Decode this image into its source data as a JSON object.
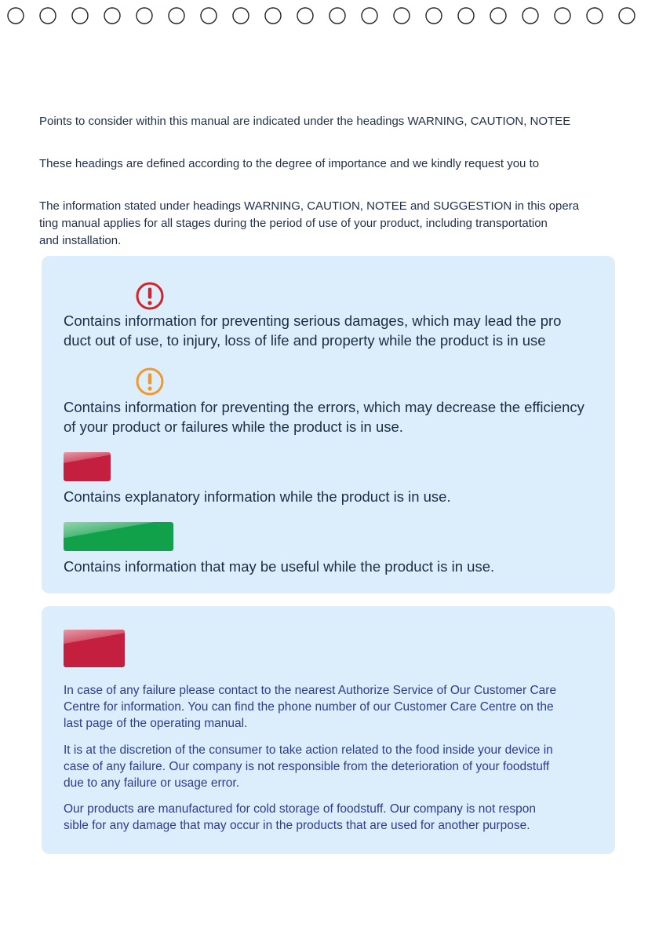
{
  "intro": {
    "line1": "Points to consider within this manual are indicated under the headings WARNING, CAUTION, NOTEE",
    "line2": "These headings are defined according to the degree of importance and we kindly request you to",
    "para3": [
      "The information stated under headings WARNING, CAUTION, NOTEE and SUGGESTION in this opera",
      "ting manual applies for all stages during the period of use of your product, including transportation",
      "and installation."
    ]
  },
  "definitions": {
    "warning": {
      "icon": "exclamation-circle-icon",
      "color": "#d3222a",
      "lines": [
        "Contains information for preventing serious damages, which may lead the pro",
        "duct out of use, to injury, loss of life and property while the product is in use"
      ]
    },
    "caution": {
      "icon": "exclamation-circle-icon",
      "color": "#f2972c",
      "lines": [
        "Contains information for preventing the errors, which may decrease the efficiency",
        "of your product or failures while the product is in use."
      ]
    },
    "note": {
      "color": "#c41f3e",
      "lines": [
        "Contains explanatory information while the product is in use."
      ]
    },
    "suggestion": {
      "color": "#12a14b",
      "lines": [
        "Contains information that may be useful while the product is in use."
      ]
    }
  },
  "notice": {
    "color": "#c41f3e",
    "paragraphs": [
      {
        "lines": [
          "In case of any failure please contact to the nearest Authorize Service of Our Customer Care",
          "Centre for information. You can find the phone number of our Customer Care Centre on the",
          "last page of the operating manual."
        ]
      },
      {
        "lines": [
          "It is at the discretion of the consumer to take action related to the food inside your device in",
          "case of any failure. Our company is not responsible from the deterioration of your foodstuff",
          "due to any failure or usage error."
        ]
      },
      {
        "lines": [
          "Our products are manufactured for cold storage of foodstuff. Our company is not respon",
          "sible for any damage that may occur in the products that are used for another purpose."
        ]
      }
    ]
  }
}
